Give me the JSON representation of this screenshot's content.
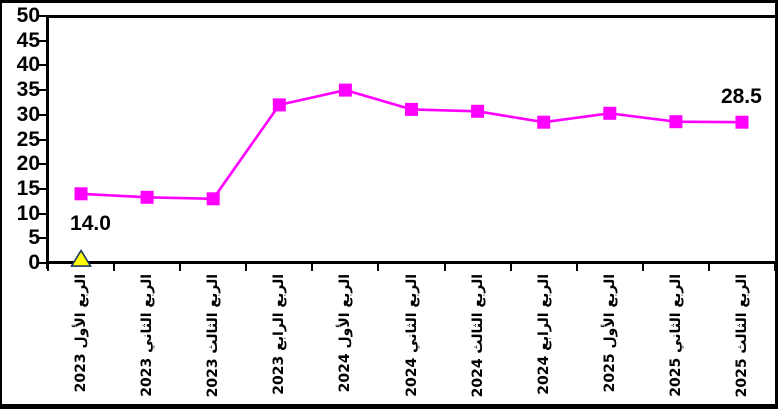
{
  "chart_data": {
    "type": "line",
    "title": "",
    "xlabel": "",
    "ylabel": "",
    "categories": [
      "الربع الأول 2023",
      "الربع الثاني 2023",
      "الربع الثالث 2023",
      "الربع الرابع 2023",
      "الربع الأول 2024",
      "الربع الثاني 2024",
      "الربع الثالث 2024",
      "الربع الرابع 2024",
      "الربع الأول 2025",
      "الربع الثاني 2025",
      "الربع الثالث 2025"
    ],
    "series": [
      {
        "name": "main-line",
        "marker": "square",
        "color": "#FF00FF",
        "values": [
          14.0,
          13.3,
          13.0,
          32.0,
          35.0,
          31.1,
          30.7,
          28.5,
          30.3,
          28.6,
          28.5
        ]
      },
      {
        "name": "axis-triangle-marker",
        "marker": "triangle",
        "color": "#FFFF00",
        "marker_border": "#203864",
        "values": [
          0.8,
          null,
          null,
          null,
          null,
          null,
          null,
          null,
          null,
          null,
          null
        ]
      }
    ],
    "annotations": [
      {
        "text": "14.0",
        "category_index": 0,
        "placement": "below"
      },
      {
        "text": "28.5",
        "category_index": 10,
        "placement": "above"
      }
    ],
    "ylim": [
      0,
      50
    ],
    "yticks": [
      0,
      5,
      10,
      15,
      20,
      25,
      30,
      35,
      40,
      45,
      50
    ],
    "grid": false,
    "legend": false,
    "axis_color": "#000000",
    "text_color": "#000000",
    "background_color": "#FFFFFF"
  }
}
